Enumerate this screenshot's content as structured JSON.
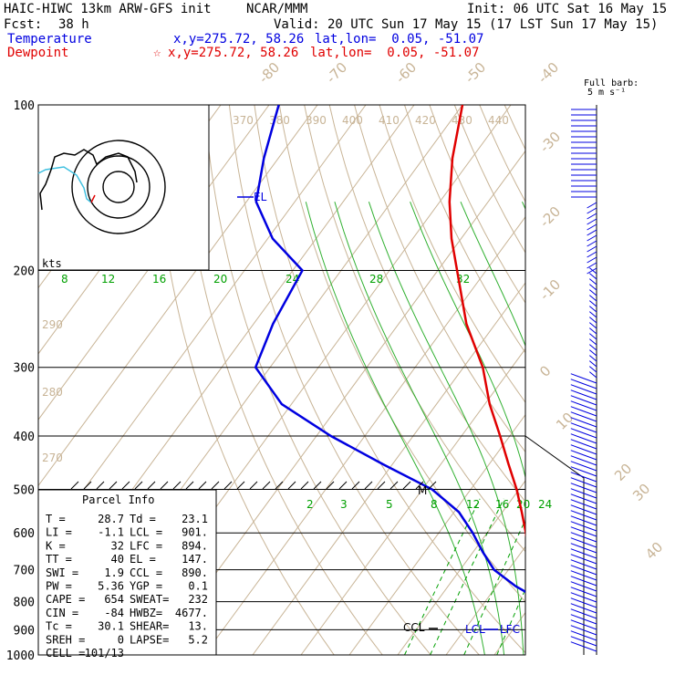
{
  "header": {
    "model": "HAIC-HIWC 13km ARW-GFS init",
    "org": "NCAR/MMM",
    "init": "Init: 06 UTC Sat 16 May 15",
    "fcst_label": "Fcst:",
    "fcst_value": "38 h",
    "valid": "Valid: 20 UTC Sun 17 May 15 (17 LST Sun 17 May 15)",
    "temp_label": "Temperature",
    "temp_xy": "x,y=275.72, 58.26",
    "temp_latlon": "lat,lon=  0.05, -51.07",
    "dew_label": "Dewpoint",
    "dew_star": "☆",
    "dew_xy": "x,y=275.72, 58.26",
    "dew_latlon": "lat,lon=  0.05, -51.07",
    "barb_label_1": "Full barb:",
    "barb_label_2": "5 m s⁻¹"
  },
  "colors": {
    "temperature": "#e00000",
    "dewpoint": "#0000e0",
    "isotherm": "#c8b496",
    "mixing_ratio": "#00a000",
    "hodo_trace": "#000000",
    "hodo_low": "#40c0e0"
  },
  "chart_data": {
    "type": "line",
    "plot_type": "skew-T log-p",
    "pressure_levels": [
      100,
      200,
      300,
      400,
      500,
      600,
      700,
      800,
      900,
      1000
    ],
    "pressure_labels": [
      "100",
      "200",
      "300",
      "400",
      "500",
      "600",
      "700",
      "800",
      "900",
      "1000"
    ],
    "isotherm_labels": [
      "-80",
      "-70",
      "-60",
      "-50",
      "-40",
      "-30",
      "-20",
      "-10",
      "0",
      "10",
      "20",
      "30",
      "40"
    ],
    "theta_labels": [
      "370",
      "380",
      "390",
      "400",
      "410",
      "420",
      "430",
      "440"
    ],
    "theta_side_labels": [
      "290",
      "280",
      "270"
    ],
    "mixing_ratio_upper_labels": [
      "8",
      "12",
      "16",
      "20",
      "24",
      "28",
      "32"
    ],
    "mixing_ratio_lower_labels": [
      "2",
      "3",
      "5",
      "8",
      "12",
      "16",
      "20",
      "24"
    ],
    "series": [
      {
        "name": "Temperature",
        "p": [
          1000,
          975,
          950,
          925,
          900,
          875,
          850,
          825,
          800,
          775,
          750,
          700,
          650,
          600,
          550,
          500,
          450,
          400,
          350,
          300,
          250,
          200,
          175,
          150,
          125,
          100
        ],
        "t": [
          29,
          26,
          23.3,
          20.5,
          18,
          15.5,
          13.5,
          11.8,
          10.5,
          9.2,
          8.2,
          5,
          1.5,
          -2,
          -6,
          -10.5,
          -16,
          -22,
          -29,
          -36,
          -46,
          -56,
          -62,
          -68,
          -74,
          -80
        ]
      },
      {
        "name": "Dewpoint",
        "p": [
          1000,
          975,
          950,
          925,
          900,
          875,
          850,
          825,
          800,
          775,
          750,
          700,
          650,
          600,
          550,
          500,
          450,
          400,
          350,
          300,
          250,
          200,
          175,
          150,
          125,
          100
        ],
        "t": [
          23,
          22,
          21,
          20,
          19.5,
          18.5,
          17,
          14.5,
          11,
          8,
          4,
          -3,
          -8,
          -13,
          -19,
          -28,
          -42,
          -57,
          -72,
          -83,
          -86,
          -88,
          -99,
          -108,
          -113,
          -118
        ]
      }
    ],
    "annotations": [
      "EL",
      "CCL",
      "LCL",
      "LFC",
      "M"
    ],
    "hodograph_label": "kts",
    "hodograph_rings": [
      10,
      20,
      30
    ]
  },
  "parcel": {
    "title": "Parcel Info",
    "rows": [
      [
        "T  =",
        "28.7",
        "Td =",
        "23.1"
      ],
      [
        "LI =",
        "-1.1",
        "LCL =",
        "901."
      ],
      [
        "K  =",
        "32",
        "LFC =",
        "894."
      ],
      [
        "TT =",
        "40",
        "EL  =",
        "147."
      ],
      [
        "SWI =",
        "1.9",
        "CCL =",
        "890."
      ],
      [
        "PW =",
        "5.36",
        "YGP =",
        "0.1"
      ],
      [
        "CAPE =",
        "654",
        "SWEAT=",
        "232"
      ],
      [
        "CIN =",
        "-84",
        "HWBZ=",
        "4677."
      ],
      [
        "Tc =",
        "30.1",
        "SHEAR=",
        "13."
      ],
      [
        "SREH =",
        "0",
        "LAPSE=",
        "5.2"
      ],
      [
        "CELL =",
        "101/13",
        "",
        ""
      ]
    ]
  }
}
